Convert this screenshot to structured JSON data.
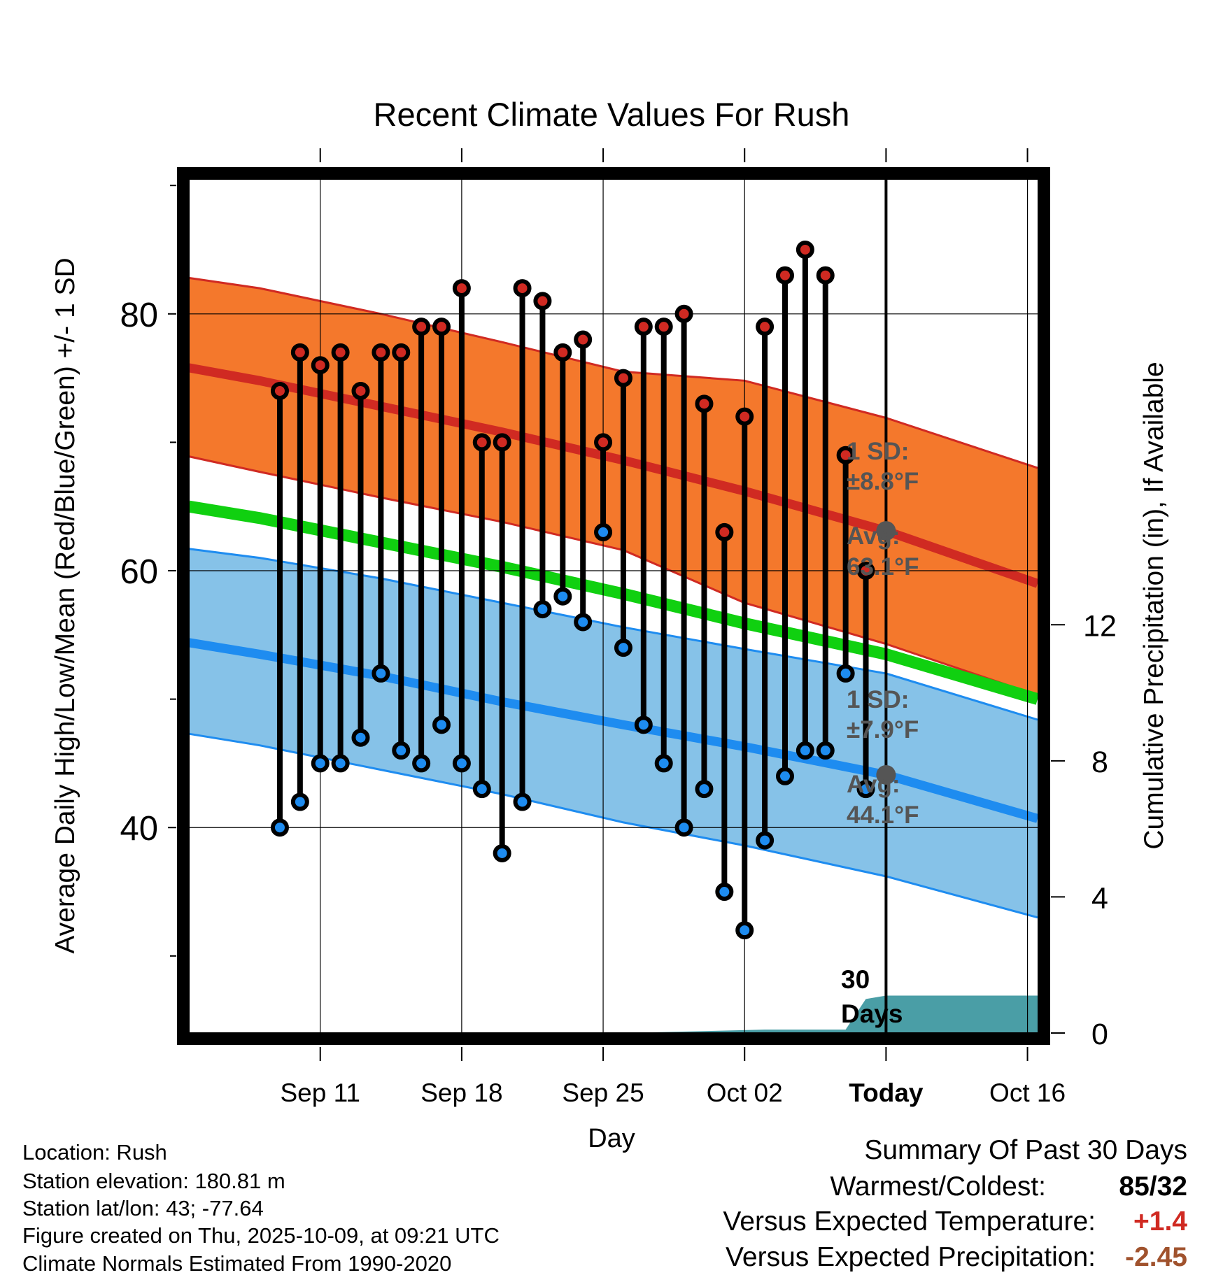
{
  "chart_data": {
    "type": "line",
    "title": "Recent Climate Values For Rush",
    "xlabel": "Day",
    "ylabel": "Average Daily High/Low/Mean (Red/Blue/Green) +/- 1 SD",
    "y2label": "Cumulative Precipitation (in), If Available",
    "x_range": [
      4.5,
      46.5
    ],
    "ylim": [
      24,
      90.5
    ],
    "y2lim": [
      0,
      25.1
    ],
    "x_ticks": [
      {
        "x": 11,
        "label": "Sep 11"
      },
      {
        "x": 18,
        "label": "Sep 18"
      },
      {
        "x": 25,
        "label": "Sep 25"
      },
      {
        "x": 32,
        "label": "Oct 02"
      },
      {
        "x": 39,
        "label": "Today"
      },
      {
        "x": 46,
        "label": "Oct 16"
      }
    ],
    "y_ticks": [
      40,
      60,
      80
    ],
    "y_minor_ticks": [
      30,
      50,
      70,
      90
    ],
    "y2_ticks": [
      0,
      4,
      8,
      12
    ],
    "today_x": 39,
    "high_band": {
      "x": [
        4.5,
        8,
        14,
        20,
        26,
        32,
        39,
        46.5
      ],
      "mean": [
        75.8,
        74.8,
        72.8,
        70.8,
        68.6,
        66.2,
        63.1,
        59.0
      ],
      "upper": [
        82.8,
        82.0,
        80.0,
        77.8,
        75.5,
        74.8,
        71.9,
        68.0
      ],
      "lower": [
        68.9,
        67.7,
        65.7,
        63.8,
        61.6,
        57.5,
        54.3,
        50.3
      ]
    },
    "low_band": {
      "x": [
        4.5,
        8,
        14,
        20,
        26,
        32,
        39,
        46.5
      ],
      "mean": [
        54.4,
        53.5,
        51.8,
        49.8,
        48.0,
        46.3,
        44.1,
        40.7
      ],
      "upper": [
        61.7,
        61.0,
        59.4,
        57.5,
        55.6,
        53.9,
        52.0,
        48.4
      ],
      "lower": [
        47.3,
        46.4,
        44.5,
        42.6,
        40.4,
        38.6,
        36.2,
        33.0
      ]
    },
    "mean_line": {
      "x": [
        4.5,
        8,
        14,
        20,
        26,
        32,
        39,
        46.5
      ],
      "values": [
        65.0,
        64.1,
        62.2,
        60.3,
        58.2,
        55.9,
        53.5,
        50.0
      ]
    },
    "daily": {
      "x": [
        9,
        10,
        11,
        12,
        13,
        14,
        15,
        16,
        17,
        18,
        19,
        20,
        21,
        22,
        23,
        24,
        25,
        26,
        27,
        28,
        29,
        30,
        31,
        32,
        33,
        34,
        35,
        36,
        37,
        38
      ],
      "highs": [
        74,
        77,
        76,
        77,
        74,
        77,
        77,
        79,
        79,
        82,
        70,
        70,
        82,
        81,
        77,
        78,
        70,
        75,
        79,
        79,
        80,
        73,
        63,
        72,
        79,
        83,
        85,
        83,
        69,
        60
      ],
      "lows": [
        40,
        42,
        45,
        45,
        47,
        52,
        46,
        45,
        48,
        45,
        43,
        38,
        42,
        57,
        58,
        56,
        63,
        54,
        48,
        45,
        40,
        43,
        35,
        32,
        39,
        44,
        46,
        46,
        52,
        43
      ]
    },
    "precip": {
      "x": [
        4.5,
        26,
        33,
        37,
        38,
        39,
        46.5
      ],
      "values": [
        0,
        0,
        0.1,
        0.1,
        1.0,
        1.1,
        1.1
      ]
    },
    "annotations": {
      "high_sd_title": "1 SD:",
      "high_sd_value": "±8.8°F",
      "high_avg_title": "Avg:",
      "high_avg_value": "63.1°F",
      "low_sd_title": "1 SD:",
      "low_sd_value": "±7.9°F",
      "low_avg_title": "Avg:",
      "low_avg_value": "44.1°F",
      "precip_days_line1": "30",
      "precip_days_line2": "Days"
    }
  },
  "footer": {
    "location": "Location: Rush",
    "elevation": "Station elevation: 180.81 m",
    "latlon": "Station lat/lon: 43; -77.64",
    "created": "Figure created on Thu, 2025-10-09, at 09:21 UTC",
    "normals": "Climate Normals Estimated From 1990-2020"
  },
  "summary": {
    "title": "Summary Of Past 30 Days",
    "warm_cold_label": "Warmest/Coldest:",
    "warm_cold_value": "85/32",
    "temp_label": "Versus Expected Temperature:",
    "temp_value": "+1.4",
    "precip_label": "Versus Expected Precipitation:",
    "precip_value": "-2.45"
  },
  "colors": {
    "high_band": "#f4782c",
    "high_edge": "#d02a22",
    "high_mean": "#d02a22",
    "low_band": "#86c2e8",
    "low_edge": "#1e8cf0",
    "low_mean": "#1e8cf0",
    "mean_line": "#10d010",
    "precip_fill": "#4a9ea6",
    "high_dot": "#d02a22",
    "low_dot": "#1e8cf0",
    "annotation": "#555555",
    "temp_value": "#d02a22",
    "precip_value": "#a0522d"
  }
}
